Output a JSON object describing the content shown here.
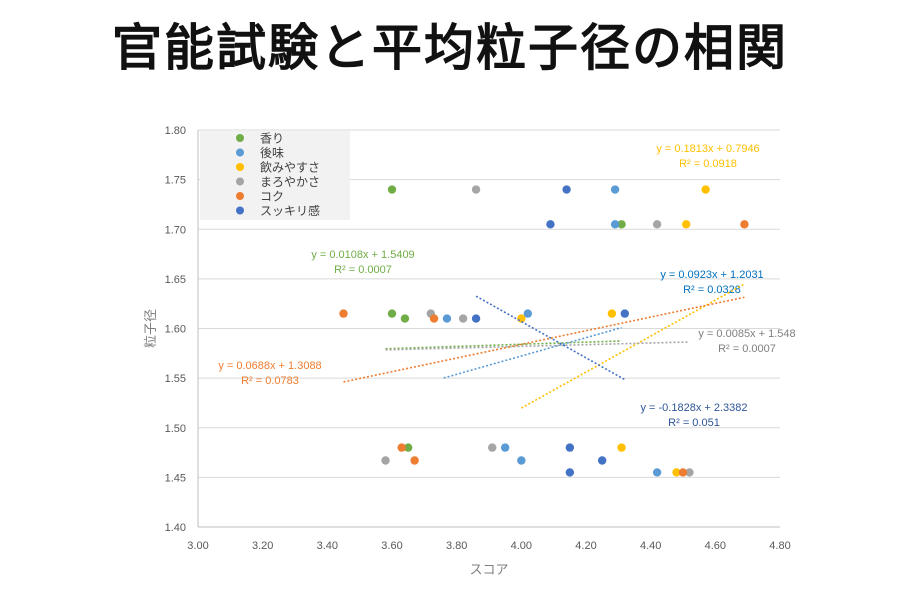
{
  "title": "官能試験と平均粒子径の相関",
  "chart_data": {
    "type": "scatter",
    "xlabel": "スコア",
    "ylabel": "粒子径",
    "xlim": [
      3.0,
      4.8
    ],
    "ylim": [
      1.4,
      1.8
    ],
    "xticks": [
      "3.00",
      "3.20",
      "3.40",
      "3.60",
      "3.80",
      "4.00",
      "4.20",
      "4.40",
      "4.60",
      "4.80"
    ],
    "yticks": [
      "1.40",
      "1.45",
      "1.50",
      "1.55",
      "1.60",
      "1.65",
      "1.70",
      "1.75",
      "1.80"
    ],
    "legend_position": "top-left",
    "series": [
      {
        "name": "香り",
        "color": "#70ad47",
        "points": [
          [
            3.6,
            1.74
          ],
          [
            4.31,
            1.705
          ],
          [
            3.6,
            1.615
          ],
          [
            3.64,
            1.61
          ],
          [
            3.65,
            1.48
          ]
        ],
        "trend": {
          "slope": 0.0108,
          "intercept": 1.5409,
          "x": [
            3.58,
            4.31
          ],
          "label": [
            "y = 0.0108x + 1.5409",
            "R² = 0.0007"
          ]
        }
      },
      {
        "name": "後味",
        "color": "#5b9bd5",
        "points": [
          [
            4.29,
            1.74
          ],
          [
            4.29,
            1.705
          ],
          [
            4.02,
            1.615
          ],
          [
            3.77,
            1.61
          ],
          [
            3.95,
            1.48
          ],
          [
            4.0,
            1.467
          ],
          [
            4.42,
            1.455
          ]
        ],
        "trend": {
          "slope": 0.0923,
          "intercept": 1.2031,
          "x": [
            3.76,
            4.31
          ],
          "label": [
            "y = 0.0923x + 1.2031",
            "R² = 0.0328"
          ]
        }
      },
      {
        "name": "飲みやすさ",
        "color": "#ffc000",
        "points": [
          [
            4.57,
            1.74
          ],
          [
            4.51,
            1.705
          ],
          [
            4.28,
            1.615
          ],
          [
            4.0,
            1.61
          ],
          [
            4.31,
            1.48
          ],
          [
            4.48,
            1.455
          ]
        ],
        "trend": {
          "slope": 0.1813,
          "intercept": 0.7946,
          "x": [
            4.0,
            4.69
          ],
          "label": [
            "y = 0.1813x + 0.7946",
            "R² = 0.0918"
          ]
        }
      },
      {
        "name": "まろやかさ",
        "color": "#a5a5a5",
        "points": [
          [
            3.86,
            1.74
          ],
          [
            4.42,
            1.705
          ],
          [
            3.72,
            1.615
          ],
          [
            3.82,
            1.61
          ],
          [
            3.91,
            1.48
          ],
          [
            3.58,
            1.467
          ],
          [
            4.52,
            1.455
          ]
        ],
        "trend": {
          "slope": 0.0085,
          "intercept": 1.548,
          "x": [
            3.58,
            4.52
          ],
          "label": [
            "y = 0.0085x + 1.548",
            "R² = 0.0007"
          ]
        }
      },
      {
        "name": "コク",
        "color": "#ed7d31",
        "points": [
          [
            4.69,
            1.705
          ],
          [
            3.45,
            1.615
          ],
          [
            3.73,
            1.61
          ],
          [
            3.63,
            1.48
          ],
          [
            3.67,
            1.467
          ],
          [
            4.5,
            1.455
          ]
        ],
        "trend": {
          "slope": 0.0688,
          "intercept": 1.3088,
          "x": [
            3.45,
            4.69
          ],
          "label": [
            "y = 0.0688x + 1.3088",
            "R² = 0.0783"
          ]
        }
      },
      {
        "name": "スッキリ感",
        "color": "#4472c4",
        "points": [
          [
            4.14,
            1.74
          ],
          [
            4.09,
            1.705
          ],
          [
            4.32,
            1.615
          ],
          [
            3.86,
            1.61
          ],
          [
            4.15,
            1.48
          ],
          [
            4.25,
            1.467
          ],
          [
            4.15,
            1.455
          ]
        ],
        "trend": {
          "slope": -0.1828,
          "intercept": 2.3382,
          "x": [
            3.86,
            4.32
          ],
          "label": [
            "y = -0.1828x + 2.3382",
            "R² = 0.051"
          ]
        }
      }
    ]
  }
}
